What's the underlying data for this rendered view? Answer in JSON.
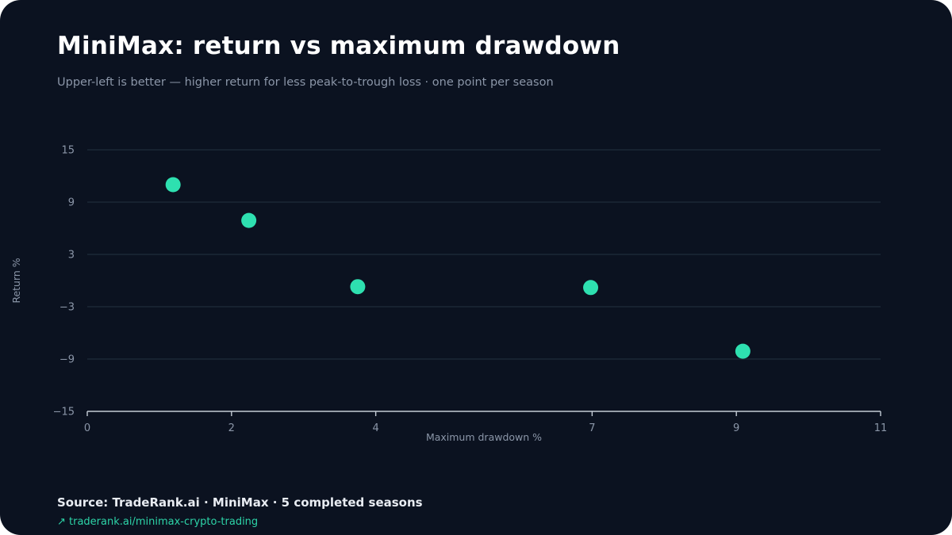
{
  "header": {
    "title": "MiniMax: return vs maximum drawdown",
    "subtitle": "Upper-left is better — higher return for less peak-to-trough loss · one point per season"
  },
  "footer": {
    "source": "Source: TradeRank.ai · MiniMax · 5 completed seasons",
    "link_text": "↗ traderank.ai/minimax-crypto-trading"
  },
  "colors": {
    "background": "#0b1220",
    "point": "#2ee0b0",
    "grid": "#1f2d3a",
    "axis": "#c5ccd6",
    "tick_label": "#8b96a8",
    "link": "#2dd4a8"
  },
  "chart_data": {
    "type": "scatter",
    "title": "MiniMax: return vs maximum drawdown",
    "subtitle": "Upper-left is better — higher return for less peak-to-trough loss · one point per season",
    "xlabel": "Maximum drawdown %",
    "ylabel": "Return %",
    "xlim": [
      0,
      11
    ],
    "ylim": [
      -15,
      15
    ],
    "x_ticks": [
      0,
      2,
      4,
      7,
      9,
      11
    ],
    "x_tick_labels": [
      "0",
      "2",
      "4",
      "7",
      "9",
      "11"
    ],
    "y_ticks": [
      15,
      9,
      3,
      -3,
      -9,
      -15
    ],
    "y_tick_labels": [
      "15",
      "9",
      "3",
      "−3",
      "−9",
      "−15"
    ],
    "grid": "horizontal",
    "points": [
      {
        "x": 1.19,
        "y": 11.0
      },
      {
        "x": 2.24,
        "y": 6.9
      },
      {
        "x": 3.75,
        "y": -0.7
      },
      {
        "x": 6.98,
        "y": -0.8
      },
      {
        "x": 9.09,
        "y": -8.1
      }
    ]
  }
}
